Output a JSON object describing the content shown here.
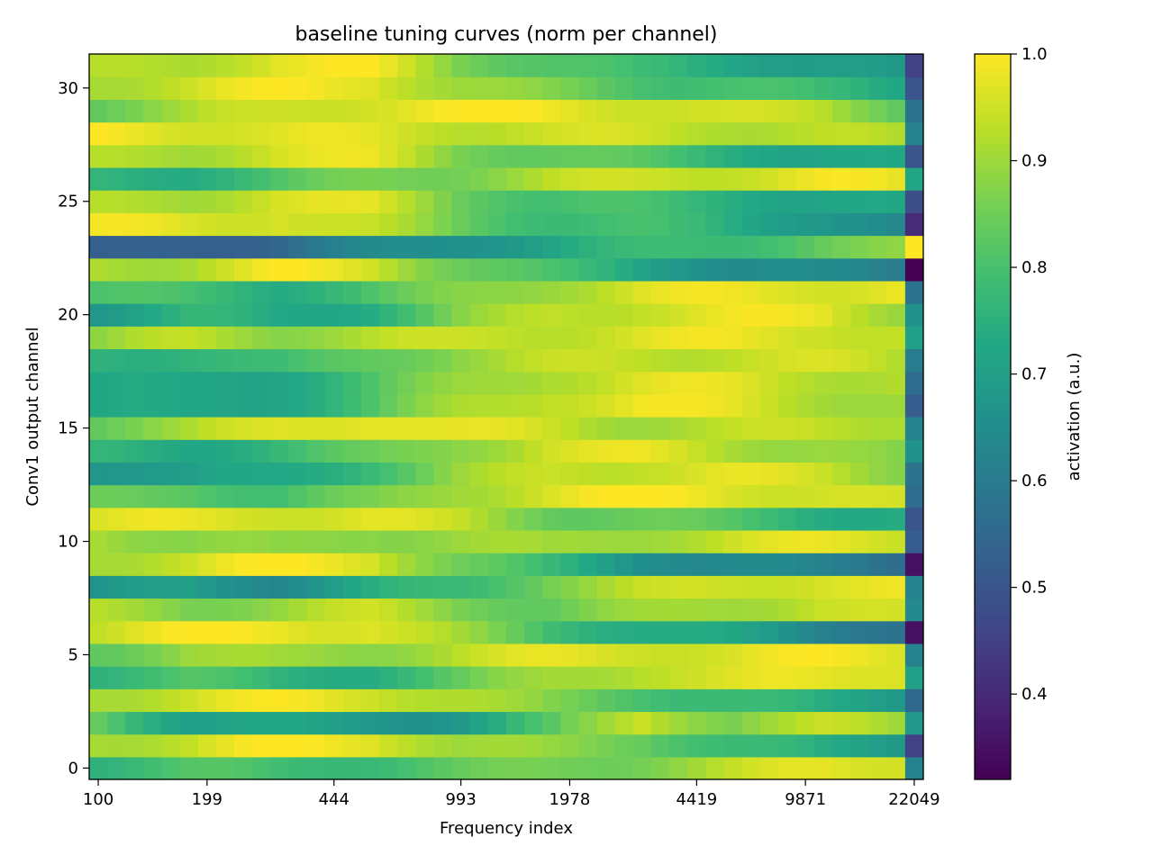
{
  "chart_data": {
    "type": "heatmap",
    "title": "baseline tuning curves (norm per channel)",
    "xlabel": "Frequency index",
    "ylabel": "Conv1 output channel",
    "x_tick_labels": [
      "100",
      "199",
      "444",
      "993",
      "1978",
      "4419",
      "9871",
      "22049"
    ],
    "x_tick_positions": [
      0,
      6,
      13,
      20,
      26,
      33,
      39,
      45
    ],
    "n_columns": 46,
    "y_ticks": [
      0,
      5,
      10,
      15,
      20,
      25,
      30
    ],
    "ylim": [
      -0.5,
      31.5
    ],
    "colorbar": {
      "label": "activation (a.u.)",
      "range": [
        0.32,
        1.0
      ],
      "ticks": [
        0.4,
        0.5,
        0.6,
        0.7,
        0.8,
        0.9,
        1.0
      ],
      "tick_labels": [
        "0.4",
        "0.5",
        "0.6",
        "0.7",
        "0.8",
        "0.9",
        "1.0"
      ],
      "colormap": "viridis"
    },
    "row_anchors_note": "each row: activation values sampled at anchor columns [0,5,10,15,20,25,30,35,40,44,45]",
    "anchor_columns": [
      0,
      5,
      10,
      15,
      20,
      25,
      30,
      35,
      40,
      44,
      45
    ],
    "rows": [
      [
        0.78,
        0.8,
        0.78,
        0.8,
        0.82,
        0.85,
        0.88,
        0.92,
        0.97,
        0.98,
        0.62
      ],
      [
        0.93,
        0.94,
        0.99,
        0.99,
        0.9,
        0.87,
        0.86,
        0.78,
        0.72,
        0.7,
        0.45
      ],
      [
        0.84,
        0.72,
        0.7,
        0.68,
        0.7,
        0.8,
        0.95,
        0.88,
        0.92,
        0.9,
        0.68
      ],
      [
        0.93,
        0.95,
        0.98,
        0.97,
        0.92,
        0.85,
        0.82,
        0.78,
        0.72,
        0.7,
        0.55
      ],
      [
        0.78,
        0.8,
        0.75,
        0.76,
        0.82,
        0.9,
        0.95,
        0.95,
        0.97,
        0.99,
        0.7
      ],
      [
        0.85,
        0.9,
        0.88,
        0.9,
        0.93,
        0.96,
        0.97,
        0.96,
        0.98,
        0.98,
        0.62
      ],
      [
        0.95,
        0.98,
        0.99,
        0.98,
        0.88,
        0.8,
        0.75,
        0.7,
        0.63,
        0.6,
        0.35
      ],
      [
        0.9,
        0.88,
        0.9,
        0.93,
        0.88,
        0.84,
        0.88,
        0.92,
        0.95,
        0.93,
        0.64
      ],
      [
        0.65,
        0.7,
        0.65,
        0.72,
        0.78,
        0.88,
        0.92,
        0.95,
        0.98,
        0.97,
        0.62
      ],
      [
        0.93,
        0.95,
        0.99,
        0.98,
        0.85,
        0.75,
        0.68,
        0.64,
        0.6,
        0.58,
        0.35
      ],
      [
        0.93,
        0.88,
        0.86,
        0.9,
        0.9,
        0.88,
        0.92,
        0.95,
        0.96,
        0.96,
        0.52
      ],
      [
        0.96,
        0.96,
        0.97,
        0.97,
        0.92,
        0.86,
        0.84,
        0.8,
        0.76,
        0.74,
        0.5
      ],
      [
        0.82,
        0.84,
        0.8,
        0.84,
        0.92,
        0.97,
        0.99,
        0.98,
        0.96,
        0.93,
        0.56
      ],
      [
        0.7,
        0.68,
        0.72,
        0.8,
        0.88,
        0.94,
        0.96,
        0.96,
        0.94,
        0.9,
        0.58
      ],
      [
        0.74,
        0.74,
        0.78,
        0.82,
        0.9,
        0.96,
        0.96,
        0.93,
        0.9,
        0.85,
        0.66
      ],
      [
        0.86,
        0.9,
        0.96,
        1.0,
        0.96,
        0.94,
        0.92,
        0.92,
        0.93,
        0.94,
        0.62
      ],
      [
        0.72,
        0.7,
        0.74,
        0.8,
        0.9,
        0.96,
        0.98,
        0.96,
        0.93,
        0.9,
        0.52
      ],
      [
        0.72,
        0.7,
        0.74,
        0.8,
        0.88,
        0.94,
        0.96,
        0.96,
        0.94,
        0.92,
        0.56
      ],
      [
        0.76,
        0.78,
        0.76,
        0.84,
        0.9,
        0.92,
        0.94,
        0.95,
        0.94,
        0.92,
        0.6
      ],
      [
        0.88,
        0.92,
        0.9,
        0.92,
        0.93,
        0.95,
        0.96,
        0.97,
        0.97,
        0.94,
        0.7
      ],
      [
        0.7,
        0.75,
        0.72,
        0.76,
        0.86,
        0.93,
        0.96,
        0.97,
        0.97,
        0.92,
        0.66
      ],
      [
        0.8,
        0.78,
        0.76,
        0.8,
        0.86,
        0.92,
        0.96,
        0.97,
        0.98,
        0.98,
        0.58
      ],
      [
        0.92,
        0.93,
        0.98,
        0.96,
        0.86,
        0.78,
        0.72,
        0.66,
        0.62,
        0.6,
        0.32
      ],
      [
        0.5,
        0.55,
        0.55,
        0.62,
        0.68,
        0.72,
        0.76,
        0.8,
        0.84,
        0.86,
        1.0
      ],
      [
        0.97,
        0.96,
        0.98,
        0.92,
        0.84,
        0.8,
        0.78,
        0.74,
        0.7,
        0.62,
        0.4
      ],
      [
        0.9,
        0.92,
        0.97,
        0.95,
        0.86,
        0.8,
        0.78,
        0.76,
        0.72,
        0.7,
        0.48
      ],
      [
        0.75,
        0.76,
        0.8,
        0.85,
        0.88,
        0.92,
        0.94,
        0.96,
        0.98,
        0.96,
        0.72
      ],
      [
        0.9,
        0.92,
        0.97,
        0.96,
        0.88,
        0.84,
        0.8,
        0.76,
        0.72,
        0.7,
        0.5
      ],
      [
        0.99,
        0.98,
        0.96,
        0.96,
        0.95,
        0.94,
        0.94,
        0.94,
        0.92,
        0.9,
        0.62
      ],
      [
        0.86,
        0.9,
        0.94,
        0.98,
        0.99,
        0.98,
        0.97,
        0.94,
        0.92,
        0.86,
        0.58
      ],
      [
        0.93,
        0.95,
        0.98,
        0.99,
        0.9,
        0.85,
        0.82,
        0.8,
        0.76,
        0.74,
        0.5
      ],
      [
        0.9,
        0.93,
        0.98,
        0.98,
        0.88,
        0.82,
        0.76,
        0.74,
        0.7,
        0.66,
        0.45
      ]
    ]
  }
}
